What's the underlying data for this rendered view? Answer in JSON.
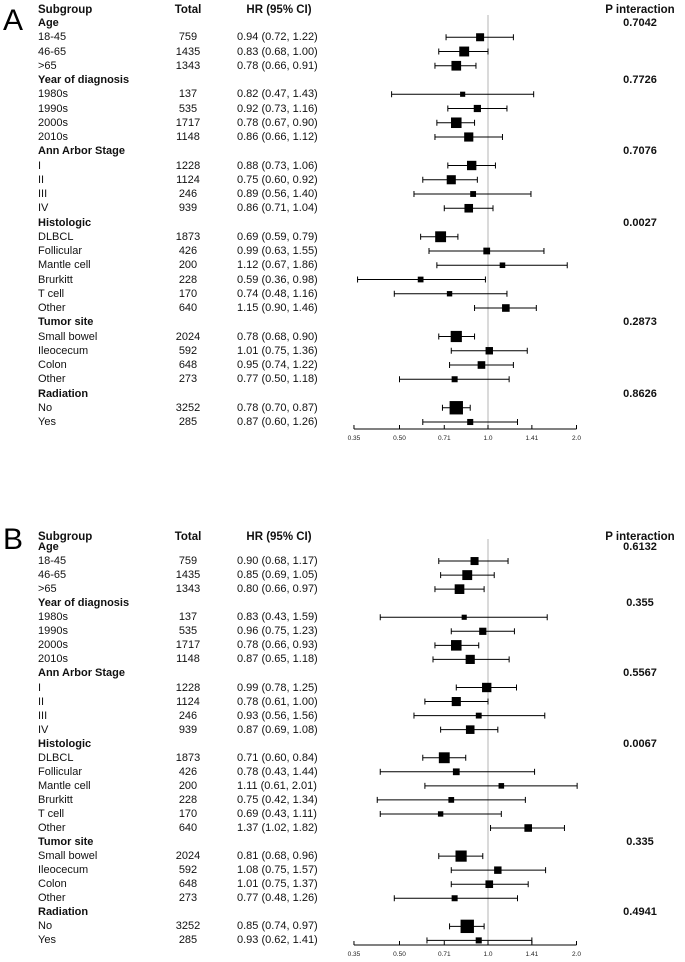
{
  "styles": {
    "marker_color": "#000000",
    "whisker_color": "#000000",
    "axis_color": "#000000",
    "ref_line_color": "#b5b5b5",
    "text_color": "#111111",
    "background": "#ffffff"
  },
  "chart_data": [
    {
      "type": "forest",
      "panel_label": "A",
      "columns": {
        "subgroup": "Subgroup",
        "total": "Total",
        "hr_ci": "HR (95% CI)",
        "p_interaction": "P interaction"
      },
      "axis": {
        "scale": "log2",
        "ticks": [
          0.35,
          0.5,
          0.71,
          1.0,
          1.41,
          2.0
        ],
        "tick_labels": [
          "0.35",
          "0.50",
          "0.71",
          "1.0",
          "1.41",
          "2.0"
        ],
        "xlim": [
          0.35,
          2.0
        ],
        "ref_line": 1.0
      },
      "groups": [
        {
          "name": "Age",
          "p_interaction": "0.7042",
          "rows": [
            {
              "label": "18-45",
              "total": 759,
              "hr": 0.94,
              "lo": 0.72,
              "hi": 1.22
            },
            {
              "label": "46-65",
              "total": 1435,
              "hr": 0.83,
              "lo": 0.68,
              "hi": 1.0
            },
            {
              "label": ">65",
              "total": 1343,
              "hr": 0.78,
              "lo": 0.66,
              "hi": 0.91
            }
          ]
        },
        {
          "name": "Year of diagnosis",
          "p_interaction": "0.7726",
          "rows": [
            {
              "label": "1980s",
              "total": 137,
              "hr": 0.82,
              "lo": 0.47,
              "hi": 1.43
            },
            {
              "label": "1990s",
              "total": 535,
              "hr": 0.92,
              "lo": 0.73,
              "hi": 1.16
            },
            {
              "label": "2000s",
              "total": 1717,
              "hr": 0.78,
              "lo": 0.67,
              "hi": 0.9
            },
            {
              "label": "2010s",
              "total": 1148,
              "hr": 0.86,
              "lo": 0.66,
              "hi": 1.12
            }
          ]
        },
        {
          "name": "Ann Arbor Stage",
          "p_interaction": "0.7076",
          "rows": [
            {
              "label": "I",
              "total": 1228,
              "hr": 0.88,
              "lo": 0.73,
              "hi": 1.06
            },
            {
              "label": "II",
              "total": 1124,
              "hr": 0.75,
              "lo": 0.6,
              "hi": 0.92
            },
            {
              "label": "III",
              "total": 246,
              "hr": 0.89,
              "lo": 0.56,
              "hi": 1.4
            },
            {
              "label": "IV",
              "total": 939,
              "hr": 0.86,
              "lo": 0.71,
              "hi": 1.04
            }
          ]
        },
        {
          "name": "Histologic",
          "p_interaction": "0.0027",
          "rows": [
            {
              "label": "DLBCL",
              "total": 1873,
              "hr": 0.69,
              "lo": 0.59,
              "hi": 0.79
            },
            {
              "label": "Follicular",
              "total": 426,
              "hr": 0.99,
              "lo": 0.63,
              "hi": 1.55
            },
            {
              "label": "Mantle cell",
              "total": 200,
              "hr": 1.12,
              "lo": 0.67,
              "hi": 1.86
            },
            {
              "label": "Brurkitt",
              "total": 228,
              "hr": 0.59,
              "lo": 0.36,
              "hi": 0.98
            },
            {
              "label": "T cell",
              "total": 170,
              "hr": 0.74,
              "lo": 0.48,
              "hi": 1.16
            },
            {
              "label": "Other",
              "total": 640,
              "hr": 1.15,
              "lo": 0.9,
              "hi": 1.46
            }
          ]
        },
        {
          "name": "Tumor site",
          "p_interaction": "0.2873",
          "rows": [
            {
              "label": "Small bowel",
              "total": 2024,
              "hr": 0.78,
              "lo": 0.68,
              "hi": 0.9
            },
            {
              "label": "Ileocecum",
              "total": 592,
              "hr": 1.01,
              "lo": 0.75,
              "hi": 1.36
            },
            {
              "label": "Colon",
              "total": 648,
              "hr": 0.95,
              "lo": 0.74,
              "hi": 1.22
            },
            {
              "label": "Other",
              "total": 273,
              "hr": 0.77,
              "lo": 0.5,
              "hi": 1.18
            }
          ]
        },
        {
          "name": "Radiation",
          "p_interaction": "0.8626",
          "rows": [
            {
              "label": "No",
              "total": 3252,
              "hr": 0.78,
              "lo": 0.7,
              "hi": 0.87
            },
            {
              "label": "Yes",
              "total": 285,
              "hr": 0.87,
              "lo": 0.6,
              "hi": 1.26
            }
          ]
        }
      ]
    },
    {
      "type": "forest",
      "panel_label": "B",
      "columns": {
        "subgroup": "Subgroup",
        "total": "Total",
        "hr_ci": "HR (95% CI)",
        "p_interaction": "P interaction"
      },
      "axis": {
        "scale": "log2",
        "ticks": [
          0.35,
          0.5,
          0.71,
          1.0,
          1.41,
          2.0
        ],
        "tick_labels": [
          "0.35",
          "0.50",
          "0.71",
          "1.0",
          "1.41",
          "2.0"
        ],
        "xlim": [
          0.35,
          2.0
        ],
        "ref_line": 1.0
      },
      "groups": [
        {
          "name": "Age",
          "p_interaction": "0.6132",
          "rows": [
            {
              "label": "18-45",
              "total": 759,
              "hr": 0.9,
              "lo": 0.68,
              "hi": 1.17
            },
            {
              "label": "46-65",
              "total": 1435,
              "hr": 0.85,
              "lo": 0.69,
              "hi": 1.05
            },
            {
              "label": ">65",
              "total": 1343,
              "hr": 0.8,
              "lo": 0.66,
              "hi": 0.97
            }
          ]
        },
        {
          "name": "Year of diagnosis",
          "p_interaction": "0.355",
          "rows": [
            {
              "label": "1980s",
              "total": 137,
              "hr": 0.83,
              "lo": 0.43,
              "hi": 1.59
            },
            {
              "label": "1990s",
              "total": 535,
              "hr": 0.96,
              "lo": 0.75,
              "hi": 1.23
            },
            {
              "label": "2000s",
              "total": 1717,
              "hr": 0.78,
              "lo": 0.66,
              "hi": 0.93
            },
            {
              "label": "2010s",
              "total": 1148,
              "hr": 0.87,
              "lo": 0.65,
              "hi": 1.18
            }
          ]
        },
        {
          "name": "Ann Arbor Stage",
          "p_interaction": "0.5567",
          "rows": [
            {
              "label": "I",
              "total": 1228,
              "hr": 0.99,
              "lo": 0.78,
              "hi": 1.25
            },
            {
              "label": "II",
              "total": 1124,
              "hr": 0.78,
              "lo": 0.61,
              "hi": 1.0
            },
            {
              "label": "III",
              "total": 246,
              "hr": 0.93,
              "lo": 0.56,
              "hi": 1.56
            },
            {
              "label": "IV",
              "total": 939,
              "hr": 0.87,
              "lo": 0.69,
              "hi": 1.08
            }
          ]
        },
        {
          "name": "Histologic",
          "p_interaction": "0.0067",
          "rows": [
            {
              "label": "DLBCL",
              "total": 1873,
              "hr": 0.71,
              "lo": 0.6,
              "hi": 0.84
            },
            {
              "label": "Follicular",
              "total": 426,
              "hr": 0.78,
              "lo": 0.43,
              "hi": 1.44
            },
            {
              "label": "Mantle cell",
              "total": 200,
              "hr": 1.11,
              "lo": 0.61,
              "hi": 2.01
            },
            {
              "label": "Brurkitt",
              "total": 228,
              "hr": 0.75,
              "lo": 0.42,
              "hi": 1.34
            },
            {
              "label": "T cell",
              "total": 170,
              "hr": 0.69,
              "lo": 0.43,
              "hi": 1.11
            },
            {
              "label": "Other",
              "total": 640,
              "hr": 1.37,
              "lo": 1.02,
              "hi": 1.82
            }
          ]
        },
        {
          "name": "Tumor site",
          "p_interaction": "0.335",
          "rows": [
            {
              "label": "Small bowel",
              "total": 2024,
              "hr": 0.81,
              "lo": 0.68,
              "hi": 0.96
            },
            {
              "label": "Ileocecum",
              "total": 592,
              "hr": 1.08,
              "lo": 0.75,
              "hi": 1.57
            },
            {
              "label": "Colon",
              "total": 648,
              "hr": 1.01,
              "lo": 0.75,
              "hi": 1.37
            },
            {
              "label": "Other",
              "total": 273,
              "hr": 0.77,
              "lo": 0.48,
              "hi": 1.26
            }
          ]
        },
        {
          "name": "Radiation",
          "p_interaction": "0.4941",
          "rows": [
            {
              "label": "No",
              "total": 3252,
              "hr": 0.85,
              "lo": 0.74,
              "hi": 0.97
            },
            {
              "label": "Yes",
              "total": 285,
              "hr": 0.93,
              "lo": 0.62,
              "hi": 1.41
            }
          ]
        }
      ]
    }
  ]
}
